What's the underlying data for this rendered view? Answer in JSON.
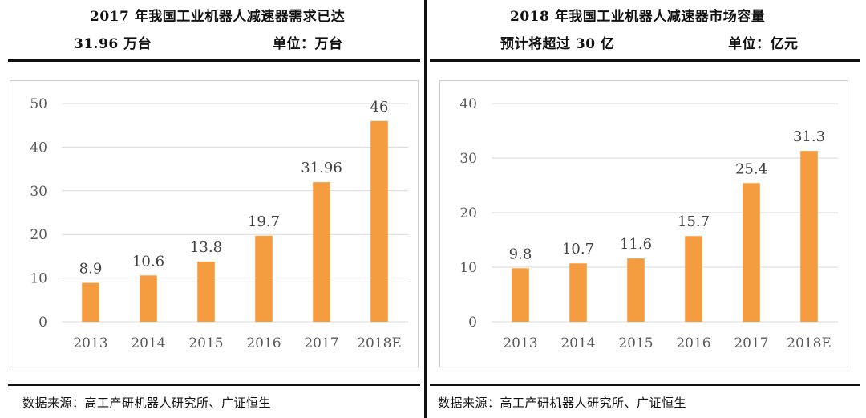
{
  "left": {
    "title_line1": "2017 年我国工业机器人减速器需求已达",
    "title_line2_left": "31.96 万台",
    "title_line2_right": "单位：万台",
    "source": "数据来源：高工产研机器人研究所、广证恒生"
  },
  "right": {
    "title_line1": "2018  年我国工业机器人减速器市场容量",
    "title_line2_left": "预计将超过 30 亿",
    "title_line2_right": "单位：亿元",
    "source": "数据来源：高工产研机器人研究所、广证恒生"
  },
  "colors": {
    "bar": "#F59B40",
    "grid": "#d9d9d9",
    "axis_text": "#595959"
  },
  "chart_data": [
    {
      "type": "bar",
      "categories": [
        "2013",
        "2014",
        "2015",
        "2016",
        "2017",
        "2018E"
      ],
      "values": [
        8.9,
        10.6,
        13.8,
        19.7,
        31.96,
        46
      ],
      "value_labels": [
        "8.9",
        "10.6",
        "13.8",
        "19.7",
        "31.96",
        "46"
      ],
      "ylim": [
        0,
        50
      ],
      "yticks": [
        "0",
        "10",
        "20",
        "30",
        "40",
        "50"
      ],
      "grid": true
    },
    {
      "type": "bar",
      "categories": [
        "2013",
        "2014",
        "2015",
        "2016",
        "2017",
        "2018E"
      ],
      "values": [
        9.8,
        10.7,
        11.6,
        15.7,
        25.4,
        31.3
      ],
      "value_labels": [
        "9.8",
        "10.7",
        "11.6",
        "15.7",
        "25.4",
        "31.3"
      ],
      "ylim": [
        0,
        40
      ],
      "yticks": [
        "0",
        "10",
        "20",
        "30",
        "40"
      ],
      "grid": true
    }
  ]
}
